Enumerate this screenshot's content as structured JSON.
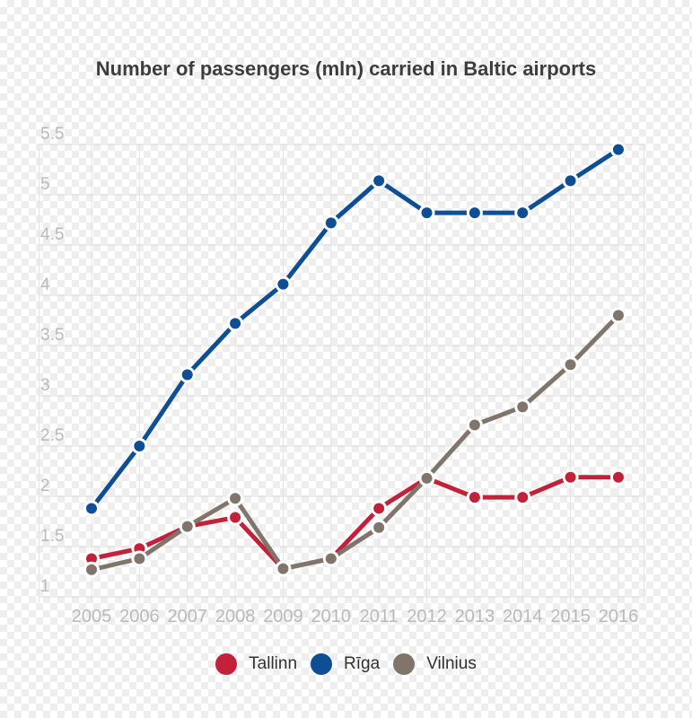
{
  "chart_data": {
    "type": "line",
    "title": "Number of passengers (mln) carried in Baltic airports",
    "categories": [
      "2005",
      "2006",
      "2007",
      "2008",
      "2009",
      "2010",
      "2011",
      "2012",
      "2013",
      "2014",
      "2015",
      "2016"
    ],
    "series": [
      {
        "name": "Tallinn",
        "color": "#c22139",
        "values": [
          1.38,
          1.48,
          1.7,
          1.79,
          1.28,
          1.38,
          1.88,
          2.18,
          1.99,
          1.99,
          2.19,
          2.19
        ]
      },
      {
        "name": "Rīga",
        "color": "#0d4e94",
        "values": [
          1.88,
          2.5,
          3.21,
          3.72,
          4.11,
          4.72,
          5.14,
          4.82,
          4.82,
          4.82,
          5.14,
          5.45
        ]
      },
      {
        "name": "Vilnius",
        "color": "#80756a",
        "values": [
          1.27,
          1.38,
          1.7,
          1.98,
          1.28,
          1.38,
          1.69,
          2.18,
          2.71,
          2.89,
          3.31,
          3.8
        ]
      }
    ],
    "xlabel": "",
    "ylabel": "",
    "ylim": [
      1,
      5.5
    ],
    "y_ticks": [
      "1",
      "1.5",
      "2",
      "2.5",
      "3",
      "3.5",
      "4",
      "4.5",
      "5",
      "5.5"
    ],
    "grid": true,
    "legend_position": "bottom"
  },
  "colors": {
    "title": "#3d3d3d",
    "axis_labels": "#b9babc",
    "grid_horizontal": "#dcdcdc",
    "grid_vertical": "#e4e4e4",
    "legend_text": "#303030",
    "point_halo": "#ffffff"
  }
}
